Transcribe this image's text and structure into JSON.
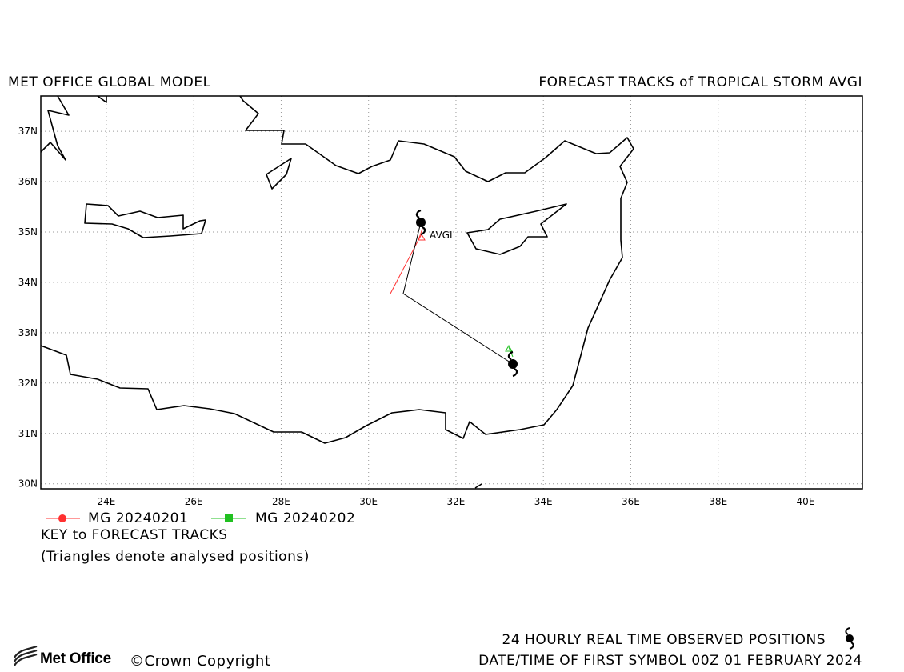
{
  "header": {
    "left_title": "MET OFFICE GLOBAL MODEL",
    "right_title": "FORECAST TRACKS of TROPICAL STORM AVGI"
  },
  "map": {
    "lon_range": [
      22.5,
      41.3
    ],
    "lat_range": [
      29.9,
      37.7
    ],
    "grid": true,
    "lat_ticks": [
      "30N",
      "31N",
      "32N",
      "33N",
      "34N",
      "35N",
      "36N",
      "37N"
    ],
    "lon_ticks": [
      "24E",
      "26E",
      "28E",
      "30E",
      "32E",
      "34E",
      "36E",
      "38E",
      "40E"
    ],
    "storm_label": "AVGI",
    "track_colors": {
      "mg_20240201": "#ff3030",
      "mg_20240202": "#20c020",
      "observed": "#000000"
    }
  },
  "legend": {
    "tracks": [
      {
        "label": "MG 20240201",
        "color": "#ff3030",
        "marker": "circle"
      },
      {
        "label": "MG 20240202",
        "color": "#20c020",
        "marker": "square"
      }
    ],
    "key_title": "KEY to FORECAST TRACKS",
    "key_note": "(Triangles denote analysed positions)"
  },
  "footer": {
    "observed_note": "24 HOURLY REAL TIME OBSERVED POSITIONS",
    "datetime_note": "DATE/TIME OF FIRST SYMBOL 00Z 01 FEBRUARY 2024",
    "logo_text": "Met Office",
    "copyright": "©Crown Copyright"
  }
}
